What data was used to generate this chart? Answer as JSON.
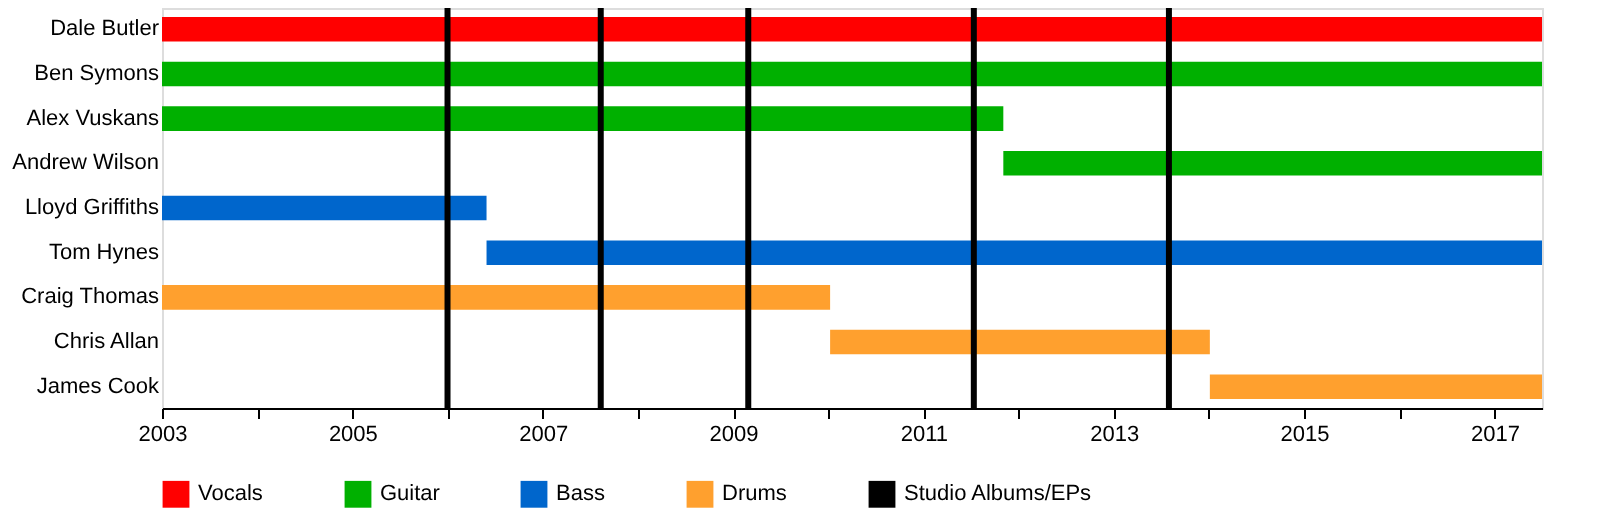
{
  "chart_data": {
    "type": "bar",
    "orientation": "horizontal",
    "categories": [
      "Dale Butler",
      "Ben Symons",
      "Alex Vuskans",
      "Andrew Wilson",
      "Lloyd Griffiths",
      "Tom Hynes",
      "Craig Thomas",
      "Chris Allan",
      "James Cook"
    ],
    "series": [
      {
        "name": "Vocals",
        "color": "#ff0000",
        "base": [
          2003,
          null,
          null,
          null,
          null,
          null,
          null,
          null,
          null
        ],
        "values": [
          14.5,
          null,
          null,
          null,
          null,
          null,
          null,
          null,
          null
        ]
      },
      {
        "name": "Guitar",
        "color": "#00b000",
        "base": [
          null,
          2003,
          2003,
          2011.84,
          null,
          null,
          null,
          null,
          null
        ],
        "values": [
          null,
          14.5,
          8.84,
          5.66,
          null,
          null,
          null,
          null,
          null
        ]
      },
      {
        "name": "Bass",
        "color": "#0066cc",
        "base": [
          null,
          null,
          null,
          null,
          2003,
          2006.41,
          null,
          null,
          null
        ],
        "values": [
          null,
          null,
          null,
          null,
          3.41,
          11.09,
          null,
          null,
          null
        ]
      },
      {
        "name": "Drums",
        "color": "#ffa02e",
        "base": [
          null,
          null,
          null,
          null,
          null,
          null,
          2003,
          2010.02,
          2014.01
        ],
        "values": [
          null,
          null,
          null,
          null,
          null,
          null,
          7.02,
          3.99,
          3.49
        ]
      }
    ],
    "ref_lines": [
      {
        "axis": "x",
        "value": 2006.0,
        "label": "Studio Albums/EPs",
        "color": "#000000"
      },
      {
        "axis": "x",
        "value": 2007.61,
        "label": null,
        "color": "#000000"
      },
      {
        "axis": "x",
        "value": 2009.16,
        "label": null,
        "color": "#000000"
      },
      {
        "axis": "x",
        "value": 2011.53,
        "label": null,
        "color": "#000000"
      },
      {
        "axis": "x",
        "value": 2013.58,
        "label": null,
        "color": "#000000"
      }
    ],
    "xlim": [
      2003,
      2017.5
    ],
    "xticks": [
      2003,
      {
        "value": 2004,
        "label": null
      },
      2005,
      {
        "value": 2006,
        "label": null
      },
      2007,
      {
        "value": 2008,
        "label": null
      },
      2009,
      {
        "value": 2010,
        "label": null
      },
      2011,
      {
        "value": 2012,
        "label": null
      },
      2013,
      {
        "value": 2014,
        "label": null
      },
      2015,
      {
        "value": 2016,
        "label": null
      },
      2017
    ],
    "grid": false,
    "legend": "bottom"
  }
}
